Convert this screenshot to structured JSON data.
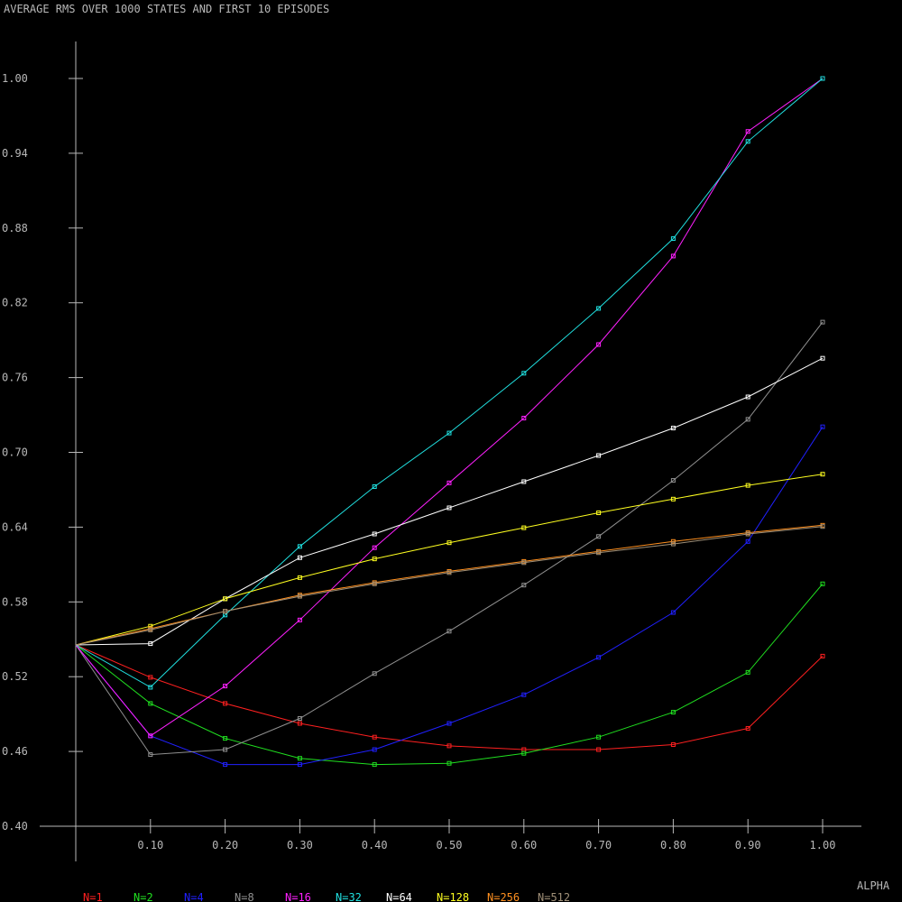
{
  "chart_data": {
    "type": "line",
    "title": "AVERAGE RMS OVER 1000 STATES AND FIRST 10 EPISODES",
    "xlabel": "ALPHA",
    "ylabel": "",
    "xlim": [
      0,
      1.0
    ],
    "ylim": [
      0.4,
      1.0
    ],
    "grid": false,
    "legend_position": "bottom",
    "x": [
      0.0,
      0.1,
      0.2,
      0.3,
      0.4,
      0.5,
      0.6,
      0.7,
      0.8,
      0.9,
      1.0
    ],
    "x_ticks": [
      "0.10",
      "0.20",
      "0.30",
      "0.40",
      "0.50",
      "0.60",
      "0.70",
      "0.80",
      "0.90",
      "1.00"
    ],
    "x_tick_values": [
      0.1,
      0.2,
      0.3,
      0.4,
      0.5,
      0.6,
      0.7,
      0.8,
      0.9,
      1.0
    ],
    "y_ticks": [
      "1.00",
      "0.94",
      "0.88",
      "0.82",
      "0.76",
      "0.70",
      "0.64",
      "0.58",
      "0.52",
      "0.46",
      "0.40"
    ],
    "y_tick_values": [
      1.0,
      0.94,
      0.88,
      0.82,
      0.76,
      0.7,
      0.64,
      0.58,
      0.52,
      0.46,
      0.4
    ],
    "series": [
      {
        "name": "N=1",
        "color": "#ff2020",
        "values": [
          0.5455,
          0.5195,
          0.4985,
          0.4825,
          0.4715,
          0.4645,
          0.4615,
          0.4615,
          0.4655,
          0.4785,
          0.5365
        ]
      },
      {
        "name": "N=2",
        "color": "#20e020",
        "values": [
          0.5455,
          0.4985,
          0.4705,
          0.4545,
          0.4495,
          0.4505,
          0.4585,
          0.4715,
          0.4915,
          0.5235,
          0.5945
        ]
      },
      {
        "name": "N=4",
        "color": "#2020ff",
        "values": [
          0.5455,
          0.4725,
          0.4495,
          0.4495,
          0.4615,
          0.4825,
          0.5055,
          0.5355,
          0.5715,
          0.6285,
          0.7205
        ]
      },
      {
        "name": "N=8",
        "color": "#909090",
        "values": [
          0.5455,
          0.4575,
          0.4615,
          0.4865,
          0.5225,
          0.5565,
          0.5935,
          0.6325,
          0.6775,
          0.7265,
          0.8045
        ]
      },
      {
        "name": "N=16",
        "color": "#ff20ff",
        "values": [
          0.5455,
          0.4725,
          0.5125,
          0.5655,
          0.6235,
          0.6755,
          0.7275,
          0.7865,
          0.8575,
          0.9575,
          1.0
        ]
      },
      {
        "name": "N=32",
        "color": "#20e0e0",
        "values": [
          0.5455,
          0.5115,
          0.5695,
          0.6245,
          0.6725,
          0.7155,
          0.7635,
          0.8155,
          0.8715,
          0.9495,
          1.0
        ]
      },
      {
        "name": "N=64",
        "color": "#ffffff",
        "values": [
          0.5455,
          0.5465,
          0.5825,
          0.6155,
          0.6345,
          0.6555,
          0.6765,
          0.6975,
          0.7195,
          0.7445,
          0.7755
        ]
      },
      {
        "name": "N=128",
        "color": "#ffff20",
        "values": [
          0.5455,
          0.5605,
          0.5825,
          0.5995,
          0.6145,
          0.6275,
          0.6395,
          0.6515,
          0.6625,
          0.6735,
          0.6825
        ]
      },
      {
        "name": "N=256",
        "color": "#ff9020",
        "values": [
          0.5455,
          0.5585,
          0.5725,
          0.5855,
          0.5955,
          0.6045,
          0.6125,
          0.6205,
          0.6285,
          0.6355,
          0.6415
        ]
      },
      {
        "name": "N=512",
        "color": "#a09078",
        "values": [
          0.5455,
          0.5575,
          0.5725,
          0.5845,
          0.5945,
          0.6035,
          0.6115,
          0.6195,
          0.6265,
          0.6345,
          0.6405
        ]
      }
    ]
  }
}
